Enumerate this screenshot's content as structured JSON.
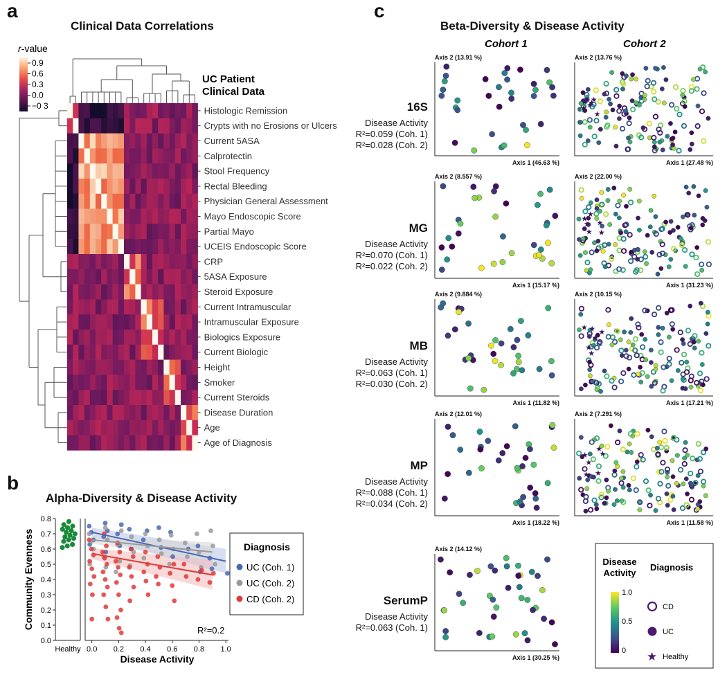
{
  "panel_a": {
    "letter": "a",
    "title": "Clinical Data Correlations",
    "colorbar_title_italic": "r",
    "colorbar_title_rest": "-value",
    "colorbar_ticks": [
      "0.9",
      "0.6",
      "0.3",
      "0.0",
      "−0 3"
    ],
    "heading_line1": "UC Patient",
    "heading_line2": "Clinical Data"
  },
  "panel_b": {
    "letter": "b",
    "title": "Alpha-Diversity & Disease Activity",
    "r2": "R²=0.2",
    "legend_title": "Diagnosis",
    "legend_items": [
      {
        "label": "UC (Coh. 1)",
        "color": "#4a67b0"
      },
      {
        "label": "UC (Coh. 2)",
        "color": "#9a9a9a"
      },
      {
        "label": "CD (Coh. 2)",
        "color": "#e03a3a"
      }
    ],
    "healthy_color": "#1a8a3a"
  },
  "panel_c": {
    "letter": "c",
    "title": "Beta-Diversity & Disease Activity",
    "col1": "Cohort 1",
    "col2": "Cohort 2",
    "stat_title": "Disease Activity",
    "rows": [
      {
        "name": "16S",
        "r1": "R²=0.059 (Coh. 1)",
        "r2": "R²=0.028 (Coh. 2)",
        "c1_ax2": "Axis 2 (13.91 %)",
        "c1_ax1": "Axis 1 (46.63 %)",
        "c2_ax2": "Axis 2 (13.76 %)",
        "c2_ax1": "Axis 1 (27.48 %)"
      },
      {
        "name": "MG",
        "r1": "R²=0.070 (Coh. 1)",
        "r2": "R²=0.022 (Coh. 2)",
        "c1_ax2": "Axis 2 (8.557 %)",
        "c1_ax1": "Axis 1 (15.17 %)",
        "c2_ax2": "Axis 2 (22.00 %)",
        "c2_ax1": "Axis 1 (31.23 %)"
      },
      {
        "name": "MB",
        "r1": "R²=0.063 (Coh. 1)",
        "r2": "R²=0.030 (Coh. 2)",
        "c1_ax2": "Axis 2 (9.884 %)",
        "c1_ax1": "Axis 1 (11.82 %)",
        "c2_ax2": "Axis 2 (10.15 %)",
        "c2_ax1": "Axis 1 (17.21 %)"
      },
      {
        "name": "MP",
        "r1": "R²=0.088 (Coh. 1)",
        "r2": "R²=0.034 (Coh. 2)",
        "c1_ax2": "Axis 2 (12.01 %)",
        "c1_ax1": "Axis 1 (18.22 %)",
        "c2_ax2": "Axis 2 (7.291 %)",
        "c2_ax1": "Axis 1 (11.58 %)"
      },
      {
        "name": "SerumP",
        "r1": "R²=0.063 (Coh. 1)",
        "r2": "",
        "c1_ax2": "Axis 2 (14.12 %)",
        "c1_ax1": "Axis 1 (30.25 %)",
        "c2_ax2": "",
        "c2_ax1": ""
      }
    ],
    "legend": {
      "title1": "Disease",
      "title2": "Activity",
      "title3": "Diagnosis",
      "ticks": [
        "1.0",
        "0.5",
        "0"
      ],
      "items": [
        "CD",
        "UC",
        "Healthy"
      ]
    }
  },
  "chart_data": [
    {
      "type": "heatmap",
      "title": "Clinical Data Correlations",
      "row_labels": [
        "Histologic Remission",
        "Crypts with no Erosions or Ulcers",
        "Current 5ASA",
        "Calprotectin",
        "Stool Frequency",
        "Rectal Bleeding",
        "Physician General Assessment",
        "Mayo Endoscopic Score",
        "Partial Mayo",
        "UCEIS Endoscopic Score",
        "CRP",
        "5ASA Exposure",
        "Steroid Exposure",
        "Current Intramuscular",
        "Intramuscular Exposure",
        "Biologics Exposure",
        "Current Biologic",
        "Height",
        "Smoker",
        "Current Steroids",
        "Disease Duration",
        "Age",
        "Age of Diagnosis"
      ],
      "colorbar_range": [
        -0.3,
        0.9
      ],
      "clusters": [
        [
          0,
          1
        ],
        [
          2,
          9
        ],
        [
          10,
          12
        ],
        [
          13,
          16
        ],
        [
          17,
          19
        ],
        [
          20,
          22
        ]
      ]
    },
    {
      "type": "scatter",
      "title": "Alpha-Diversity & Disease Activity",
      "xlabel": "Disease Activity",
      "ylabel": "Community Evenness",
      "healthy_label": "Healthy",
      "x_ticks": [
        "0.0",
        "0.2",
        "0.4",
        "0.6",
        "0.8",
        "1.0"
      ],
      "y_ticks": [
        "0.0",
        "0.1",
        "0.2",
        "0.3",
        "0.4",
        "0.5",
        "0.6",
        "0.7",
        "0.8"
      ],
      "xlim": [
        -0.05,
        1.02
      ],
      "ylim": [
        0,
        0.8
      ],
      "healthy_y": [
        0.61,
        0.62,
        0.63,
        0.65,
        0.66,
        0.67,
        0.68,
        0.69,
        0.7,
        0.71,
        0.72,
        0.73,
        0.74,
        0.75,
        0.76,
        0.78
      ],
      "series": [
        {
          "name": "UC (Coh. 1)",
          "color": "#4a67b0",
          "trend": [
            [
              0,
              0.71
            ],
            [
              1.0,
              0.52
            ]
          ],
          "points": [
            [
              0,
              0.75
            ],
            [
              0,
              0.71
            ],
            [
              0,
              0.66
            ],
            [
              0,
              0.63
            ],
            [
              0.1,
              0.77
            ],
            [
              0.1,
              0.72
            ],
            [
              0.1,
              0.68
            ],
            [
              0.1,
              0.58
            ],
            [
              0.2,
              0.76
            ],
            [
              0.2,
              0.7
            ],
            [
              0.2,
              0.62
            ],
            [
              0.3,
              0.73
            ],
            [
              0.3,
              0.6
            ],
            [
              0.4,
              0.72
            ],
            [
              0.4,
              0.66
            ],
            [
              0.5,
              0.74
            ],
            [
              0.5,
              0.61
            ],
            [
              0.6,
              0.71
            ],
            [
              0.6,
              0.55
            ],
            [
              0.7,
              0.6
            ],
            [
              0.8,
              0.62
            ],
            [
              0.8,
              0.45
            ],
            [
              0.9,
              0.54
            ],
            [
              0.9,
              0.47
            ],
            [
              1.0,
              0.44
            ]
          ]
        },
        {
          "name": "UC (Coh. 2)",
          "color": "#9a9a9a",
          "trend": [
            [
              0,
              0.66
            ],
            [
              0.9,
              0.58
            ]
          ],
          "points": [
            [
              0,
              0.7
            ],
            [
              0,
              0.65
            ],
            [
              0,
              0.6
            ],
            [
              0,
              0.5
            ],
            [
              0.1,
              0.74
            ],
            [
              0.1,
              0.66
            ],
            [
              0.1,
              0.55
            ],
            [
              0.1,
              0.48
            ],
            [
              0.2,
              0.72
            ],
            [
              0.2,
              0.63
            ],
            [
              0.2,
              0.52
            ],
            [
              0.2,
              0.45
            ],
            [
              0.3,
              0.68
            ],
            [
              0.3,
              0.58
            ],
            [
              0.3,
              0.49
            ],
            [
              0.4,
              0.7
            ],
            [
              0.4,
              0.62
            ],
            [
              0.4,
              0.54
            ],
            [
              0.5,
              0.66
            ],
            [
              0.5,
              0.57
            ],
            [
              0.6,
              0.69
            ],
            [
              0.6,
              0.6
            ],
            [
              0.6,
              0.5
            ],
            [
              0.7,
              0.64
            ],
            [
              0.7,
              0.55
            ],
            [
              0.8,
              0.7
            ],
            [
              0.8,
              0.58
            ],
            [
              0.8,
              0.48
            ],
            [
              0.9,
              0.72
            ],
            [
              0.9,
              0.62
            ],
            [
              0.9,
              0.5
            ]
          ]
        },
        {
          "name": "CD (Coh. 2)",
          "color": "#e03a3a",
          "trend": [
            [
              0,
              0.57
            ],
            [
              0.9,
              0.43
            ]
          ],
          "points": [
            [
              0,
              0.66
            ],
            [
              0,
              0.6
            ],
            [
              0,
              0.56
            ],
            [
              0,
              0.52
            ],
            [
              0,
              0.47
            ],
            [
              0,
              0.42
            ],
            [
              0,
              0.37
            ],
            [
              0,
              0.3
            ],
            [
              -0.02,
              0.14
            ],
            [
              0.1,
              0.7
            ],
            [
              0.1,
              0.62
            ],
            [
              0.1,
              0.58
            ],
            [
              0.1,
              0.54
            ],
            [
              0.1,
              0.5
            ],
            [
              0.1,
              0.45
            ],
            [
              0.1,
              0.4
            ],
            [
              0.1,
              0.35
            ],
            [
              0.1,
              0.3
            ],
            [
              0.1,
              0.22
            ],
            [
              0.1,
              0.14
            ],
            [
              0.2,
              0.64
            ],
            [
              0.2,
              0.58
            ],
            [
              0.2,
              0.52
            ],
            [
              0.2,
              0.48
            ],
            [
              0.2,
              0.43
            ],
            [
              0.2,
              0.38
            ],
            [
              0.2,
              0.3
            ],
            [
              0.2,
              0.2
            ],
            [
              0.2,
              0.15
            ],
            [
              0.2,
              0.08
            ],
            [
              0.2,
              0.05
            ],
            [
              0.3,
              0.6
            ],
            [
              0.3,
              0.55
            ],
            [
              0.3,
              0.48
            ],
            [
              0.3,
              0.42
            ],
            [
              0.3,
              0.35
            ],
            [
              0.3,
              0.26
            ],
            [
              0.4,
              0.58
            ],
            [
              0.4,
              0.5
            ],
            [
              0.4,
              0.45
            ],
            [
              0.4,
              0.39
            ],
            [
              0.4,
              0.3
            ],
            [
              0.5,
              0.55
            ],
            [
              0.5,
              0.48
            ],
            [
              0.5,
              0.42
            ],
            [
              0.5,
              0.37
            ],
            [
              0.6,
              0.5
            ],
            [
              0.6,
              0.44
            ],
            [
              0.6,
              0.36
            ],
            [
              0.6,
              0.26
            ],
            [
              0.7,
              0.5
            ],
            [
              0.7,
              0.42
            ],
            [
              0.8,
              0.46
            ],
            [
              0.8,
              0.4
            ],
            [
              0.9,
              0.44
            ],
            [
              0.9,
              0.38
            ]
          ]
        }
      ]
    },
    {
      "type": "scatter",
      "title": "Beta-Diversity & Disease Activity",
      "colorscale": [
        "#440154",
        "#3b528b",
        "#21918c",
        "#5ec962",
        "#fde725"
      ],
      "activity_range": [
        0,
        1
      ]
    }
  ]
}
